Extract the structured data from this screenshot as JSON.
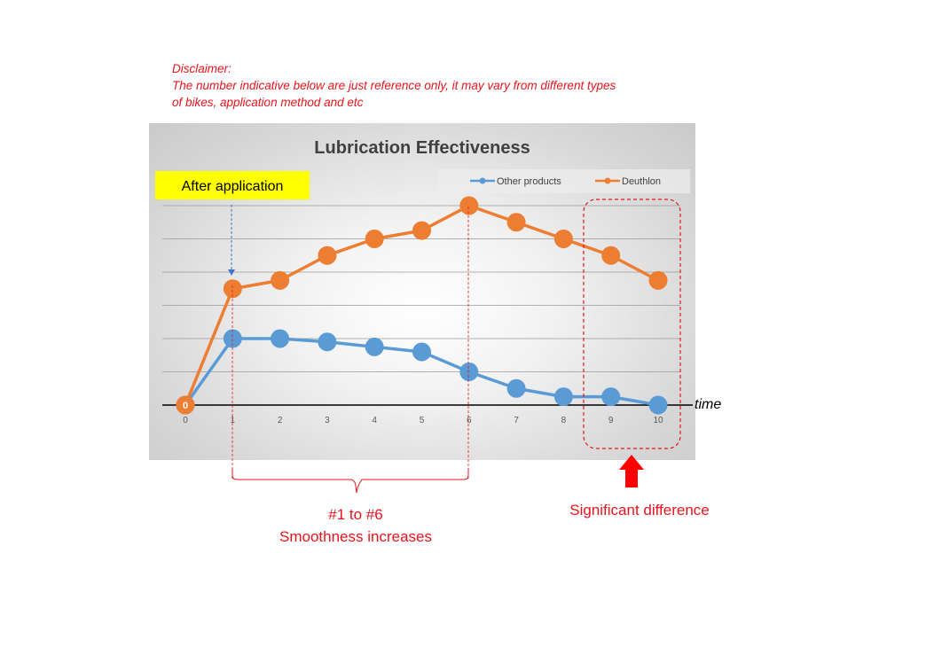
{
  "disclaimer": {
    "heading": "Disclaimer:",
    "line1": "The number indicative below are just reference only, it may vary from different types",
    "line2": "of bikes, application method and etc"
  },
  "annotations": {
    "after_application": "After application",
    "range_label_line1": "#1 to #6",
    "range_label_line2": "Smoothness increases",
    "difference_label": "Significant difference",
    "axis_time_label": "time",
    "origin_label": "0"
  },
  "colors": {
    "other_products": "#5b9bd5",
    "deuthlon": "#ed7d31",
    "annotation_red": "#e8141b",
    "highlight_yellow": "#ffff00"
  },
  "chart_data": {
    "type": "line",
    "title": "Lubrication Effectiveness",
    "xlabel": "time",
    "ylabel": "",
    "x": [
      0,
      1,
      2,
      3,
      4,
      5,
      6,
      7,
      8,
      9,
      10
    ],
    "ylim": [
      0,
      6
    ],
    "grid": true,
    "legend": "top-right",
    "series": [
      {
        "name": "Other products",
        "color": "#5b9bd5",
        "values": [
          0,
          2.0,
          2.0,
          1.9,
          1.75,
          1.6,
          1.0,
          0.5,
          0.25,
          0.25,
          0
        ]
      },
      {
        "name": "Deuthlon",
        "color": "#ed7d31",
        "values": [
          0,
          3.5,
          3.75,
          4.5,
          5.0,
          5.25,
          6.0,
          5.5,
          5.0,
          4.5,
          3.75
        ]
      }
    ]
  }
}
